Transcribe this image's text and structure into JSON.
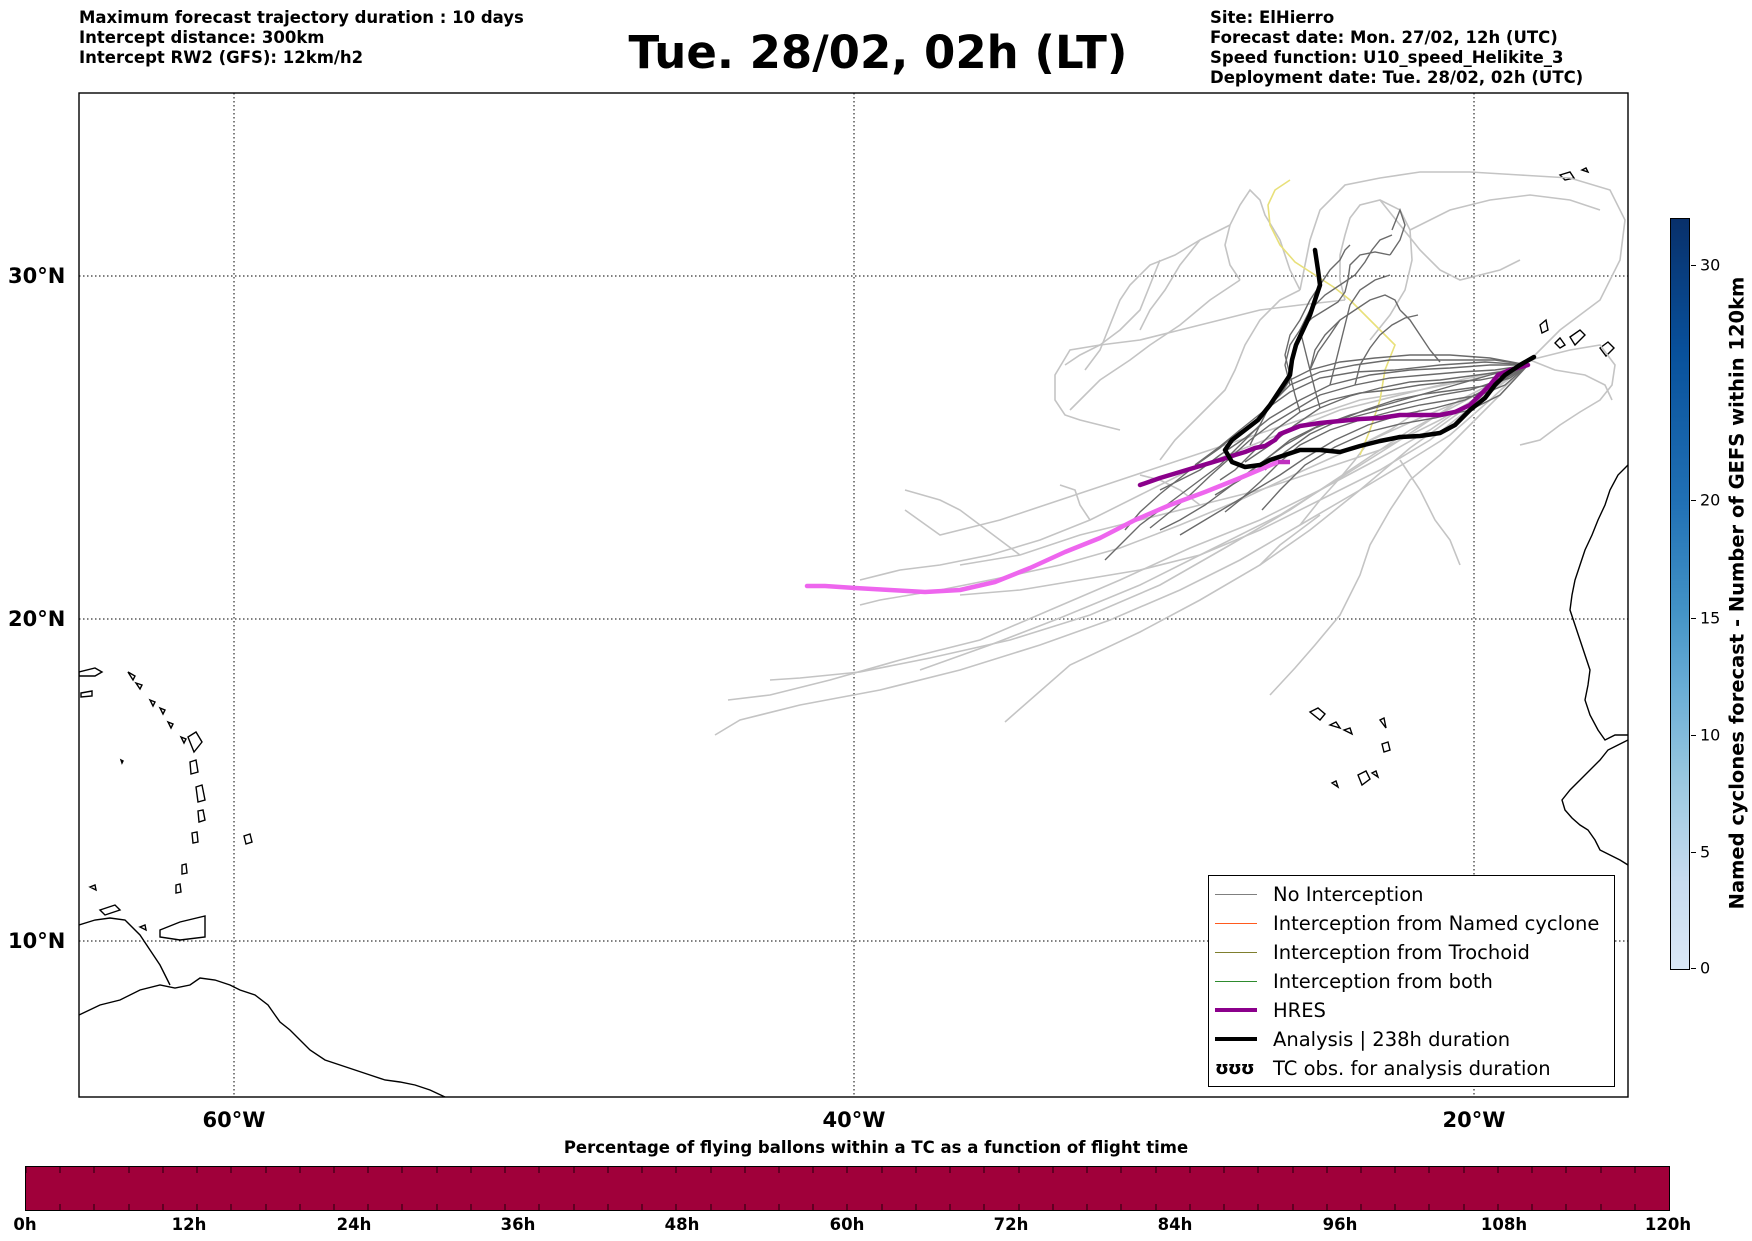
{
  "header": {
    "left_lines": [
      "Maximum forecast trajectory duration : 10 days",
      "Intercept distance: 300km",
      "Intercept RW2 (GFS):  12km/h2"
    ],
    "title": "Tue. 28/02, 02h (LT)",
    "right_lines": [
      "Site: ElHierro",
      "Forecast date: Mon. 27/02, 12h (UTC)",
      "Speed function: U10_speed_Helikite_3",
      "Deployment date: Tue. 28/02, 02h (UTC)"
    ]
  },
  "map": {
    "lon_labels": [
      "60°W",
      "40°W",
      "20°W"
    ],
    "lat_labels": [
      "30°N",
      "20°N",
      "10°N"
    ],
    "graticule": {
      "lon_deg": [
        -60,
        -40,
        -20
      ],
      "lat_deg": [
        30,
        20,
        10
      ]
    },
    "extent": {
      "lon_min": -65,
      "lon_max": -15,
      "lat_min": 5.3,
      "lat_max": 35.3
    }
  },
  "legend": {
    "items": [
      {
        "label": "No Interception",
        "color": "#7f7f7f",
        "style": "thin-line"
      },
      {
        "label": "Interception from Named cyclone",
        "color": "#ff5a1e",
        "style": "thin-line"
      },
      {
        "label": "Interception from Trochoid",
        "color": "#7f7f2e",
        "style": "thin-line"
      },
      {
        "label": "Interception from both",
        "color": "#2e8b2e",
        "style": "thin-line"
      },
      {
        "label": "HRES",
        "color": "#8b008b",
        "style": "thick-line"
      },
      {
        "label": "Analysis | 238h duration",
        "color": "#000000",
        "style": "thick-line"
      },
      {
        "label": "TC obs. for analysis duration",
        "symbol": "ʊʊʊ",
        "style": "symbol"
      }
    ]
  },
  "colorbar": {
    "title": "Named cyclones forecast - Number of GEFS within 120km",
    "ticks": [
      "0",
      "5",
      "10",
      "15",
      "20",
      "30"
    ],
    "colors": [
      "#dbe9f6",
      "#c6dbef",
      "#9ecae1",
      "#6baed6",
      "#4292c6",
      "#2171b5",
      "#08519c",
      "#08306b"
    ]
  },
  "bottom_bar": {
    "title": "Percentage of flying ballons within a TC as a function of flight time",
    "color": "#a0003a",
    "labels": [
      "0h",
      "12h",
      "24h",
      "36h",
      "48h",
      "60h",
      "72h",
      "84h",
      "96h",
      "108h",
      "120h"
    ]
  }
}
